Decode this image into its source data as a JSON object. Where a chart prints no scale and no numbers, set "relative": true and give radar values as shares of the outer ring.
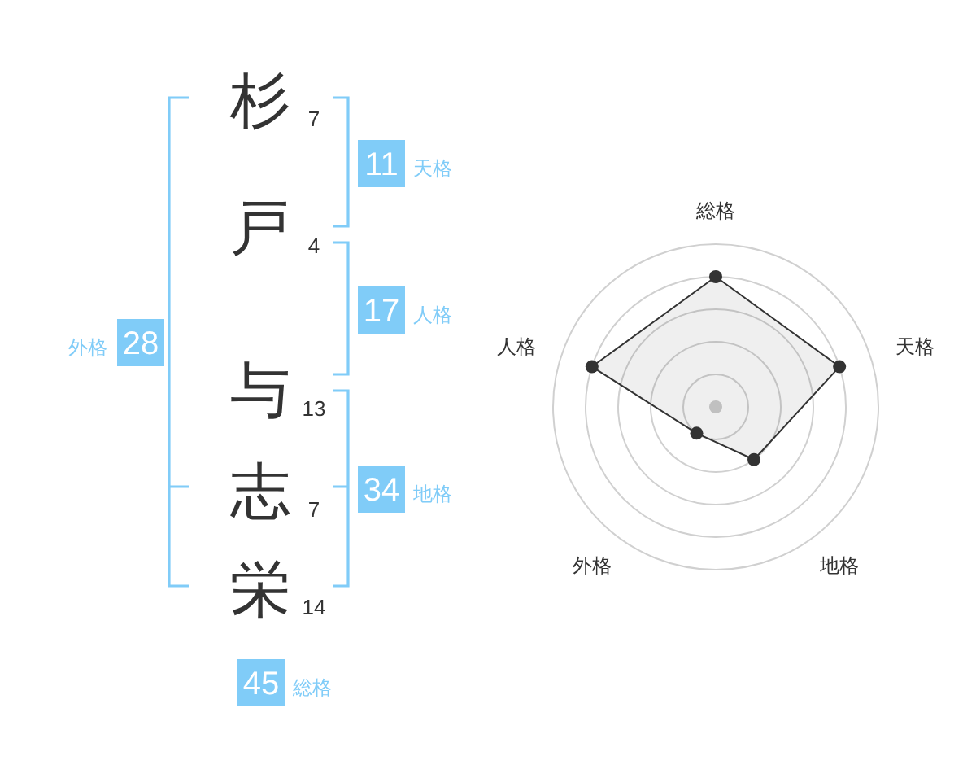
{
  "chart_data": [
    {
      "type": "other",
      "categories": [
        "杉",
        "戸",
        "与",
        "志",
        "栄"
      ],
      "values": [
        7,
        4,
        13,
        7,
        14
      ],
      "data_labels": true
    },
    {
      "type": "other",
      "categories": [
        "天格",
        "人格",
        "地格",
        "外格",
        "総格"
      ],
      "values": [
        11,
        17,
        34,
        28,
        45
      ],
      "data_labels": true,
      "color": "#80ccf8"
    },
    {
      "type": "radar",
      "categories": [
        "総格",
        "天格",
        "地格",
        "外格",
        "人格"
      ],
      "relative": true,
      "grid": true,
      "marker": "circle",
      "series": [
        {
          "color": "#333333",
          "values": [
            0.8,
            0.8,
            0.4,
            0.2,
            0.8
          ]
        }
      ]
    }
  ]
}
